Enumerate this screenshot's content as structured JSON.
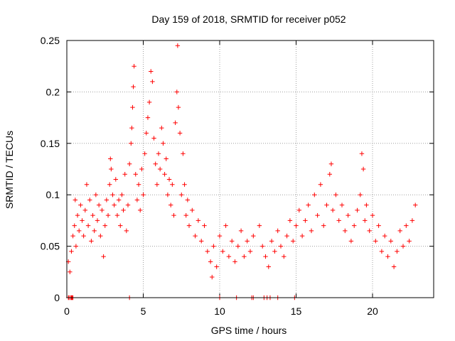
{
  "chart_data": {
    "type": "scatter",
    "title": "Day 159 of 2018, SRMTID for receiver p052",
    "xlabel": "GPS time / hours",
    "ylabel": "SRMTID / TECUs",
    "xlim": [
      0,
      24
    ],
    "ylim": [
      0,
      0.25
    ],
    "xticks": [
      0,
      5,
      10,
      15,
      20
    ],
    "xtick_labels": [
      "0",
      "5",
      "10",
      "15",
      "20"
    ],
    "yticks": [
      0,
      0.05,
      0.1,
      0.15,
      0.2,
      0.25
    ],
    "ytick_labels": [
      "0",
      "0.05",
      "0.1",
      "0.15",
      "0.2",
      "0.25"
    ],
    "grid": true,
    "legend": "none",
    "marker": "+",
    "color": "#ff0000",
    "series": [
      {
        "name": "SRMTID",
        "points": [
          [
            0.1,
            0.0
          ],
          [
            0.15,
            0.0
          ],
          [
            0.25,
            0.0
          ],
          [
            0.3,
            0.0
          ],
          [
            0.35,
            0.0
          ],
          [
            0.4,
            0.0
          ],
          [
            4.1,
            0.0
          ],
          [
            10.0,
            0.0
          ],
          [
            11.1,
            0.0
          ],
          [
            12.1,
            0.0
          ],
          [
            12.2,
            0.0
          ],
          [
            12.9,
            0.0
          ],
          [
            13.1,
            0.0
          ],
          [
            13.3,
            0.0
          ],
          [
            13.8,
            0.0
          ],
          [
            14.9,
            0.0
          ],
          [
            0.1,
            0.035
          ],
          [
            0.2,
            0.025
          ],
          [
            0.3,
            0.045
          ],
          [
            0.4,
            0.06
          ],
          [
            0.5,
            0.07
          ],
          [
            0.55,
            0.095
          ],
          [
            0.6,
            0.05
          ],
          [
            0.7,
            0.08
          ],
          [
            0.8,
            0.065
          ],
          [
            0.9,
            0.09
          ],
          [
            1.0,
            0.075
          ],
          [
            1.1,
            0.06
          ],
          [
            1.2,
            0.085
          ],
          [
            1.3,
            0.11
          ],
          [
            1.4,
            0.07
          ],
          [
            1.5,
            0.095
          ],
          [
            1.6,
            0.055
          ],
          [
            1.7,
            0.08
          ],
          [
            1.8,
            0.065
          ],
          [
            1.9,
            0.1
          ],
          [
            2.0,
            0.075
          ],
          [
            2.1,
            0.09
          ],
          [
            2.2,
            0.06
          ],
          [
            2.3,
            0.085
          ],
          [
            2.4,
            0.04
          ],
          [
            2.5,
            0.07
          ],
          [
            2.6,
            0.095
          ],
          [
            2.7,
            0.08
          ],
          [
            2.8,
            0.11
          ],
          [
            2.85,
            0.135
          ],
          [
            2.9,
            0.125
          ],
          [
            3.0,
            0.1
          ],
          [
            3.1,
            0.09
          ],
          [
            3.2,
            0.115
          ],
          [
            3.3,
            0.08
          ],
          [
            3.4,
            0.095
          ],
          [
            3.5,
            0.07
          ],
          [
            3.6,
            0.1
          ],
          [
            3.7,
            0.085
          ],
          [
            3.8,
            0.12
          ],
          [
            3.9,
            0.065
          ],
          [
            4.0,
            0.09
          ],
          [
            4.1,
            0.13
          ],
          [
            4.2,
            0.15
          ],
          [
            4.25,
            0.165
          ],
          [
            4.3,
            0.185
          ],
          [
            4.35,
            0.205
          ],
          [
            4.4,
            0.225
          ],
          [
            4.5,
            0.12
          ],
          [
            4.6,
            0.095
          ],
          [
            4.7,
            0.11
          ],
          [
            4.8,
            0.085
          ],
          [
            4.9,
            0.125
          ],
          [
            5.0,
            0.1
          ],
          [
            5.1,
            0.14
          ],
          [
            5.2,
            0.16
          ],
          [
            5.3,
            0.175
          ],
          [
            5.4,
            0.19
          ],
          [
            5.5,
            0.22
          ],
          [
            5.6,
            0.21
          ],
          [
            5.7,
            0.155
          ],
          [
            5.8,
            0.13
          ],
          [
            5.9,
            0.11
          ],
          [
            6.0,
            0.14
          ],
          [
            6.1,
            0.125
          ],
          [
            6.2,
            0.165
          ],
          [
            6.3,
            0.15
          ],
          [
            6.4,
            0.12
          ],
          [
            6.5,
            0.135
          ],
          [
            6.6,
            0.1
          ],
          [
            6.7,
            0.115
          ],
          [
            6.8,
            0.09
          ],
          [
            6.9,
            0.11
          ],
          [
            7.0,
            0.08
          ],
          [
            7.1,
            0.17
          ],
          [
            7.2,
            0.2
          ],
          [
            7.25,
            0.245
          ],
          [
            7.3,
            0.185
          ],
          [
            7.4,
            0.16
          ],
          [
            7.5,
            0.1
          ],
          [
            7.6,
            0.14
          ],
          [
            7.7,
            0.11
          ],
          [
            7.8,
            0.08
          ],
          [
            7.9,
            0.095
          ],
          [
            8.0,
            0.07
          ],
          [
            8.2,
            0.085
          ],
          [
            8.4,
            0.06
          ],
          [
            8.6,
            0.075
          ],
          [
            8.8,
            0.055
          ],
          [
            9.0,
            0.07
          ],
          [
            9.2,
            0.045
          ],
          [
            9.4,
            0.035
          ],
          [
            9.5,
            0.02
          ],
          [
            9.6,
            0.05
          ],
          [
            9.8,
            0.03
          ],
          [
            10.0,
            0.06
          ],
          [
            10.2,
            0.045
          ],
          [
            10.4,
            0.07
          ],
          [
            10.6,
            0.04
          ],
          [
            10.8,
            0.055
          ],
          [
            11.0,
            0.035
          ],
          [
            11.2,
            0.05
          ],
          [
            11.4,
            0.065
          ],
          [
            11.6,
            0.04
          ],
          [
            11.8,
            0.055
          ],
          [
            12.0,
            0.045
          ],
          [
            12.2,
            0.06
          ],
          [
            12.6,
            0.07
          ],
          [
            12.8,
            0.05
          ],
          [
            13.0,
            0.04
          ],
          [
            13.2,
            0.03
          ],
          [
            13.4,
            0.055
          ],
          [
            13.6,
            0.045
          ],
          [
            13.8,
            0.065
          ],
          [
            14.0,
            0.05
          ],
          [
            14.2,
            0.04
          ],
          [
            14.4,
            0.06
          ],
          [
            14.6,
            0.075
          ],
          [
            14.8,
            0.055
          ],
          [
            15.0,
            0.07
          ],
          [
            15.2,
            0.085
          ],
          [
            15.4,
            0.06
          ],
          [
            15.6,
            0.075
          ],
          [
            15.8,
            0.09
          ],
          [
            16.0,
            0.065
          ],
          [
            16.2,
            0.1
          ],
          [
            16.4,
            0.08
          ],
          [
            16.6,
            0.11
          ],
          [
            16.8,
            0.07
          ],
          [
            17.0,
            0.09
          ],
          [
            17.2,
            0.12
          ],
          [
            17.3,
            0.13
          ],
          [
            17.4,
            0.085
          ],
          [
            17.6,
            0.1
          ],
          [
            17.8,
            0.075
          ],
          [
            18.0,
            0.09
          ],
          [
            18.2,
            0.065
          ],
          [
            18.4,
            0.08
          ],
          [
            18.6,
            0.055
          ],
          [
            18.8,
            0.07
          ],
          [
            19.0,
            0.085
          ],
          [
            19.2,
            0.1
          ],
          [
            19.3,
            0.14
          ],
          [
            19.4,
            0.125
          ],
          [
            19.5,
            0.075
          ],
          [
            19.6,
            0.09
          ],
          [
            19.8,
            0.065
          ],
          [
            20.0,
            0.08
          ],
          [
            20.2,
            0.055
          ],
          [
            20.4,
            0.07
          ],
          [
            20.6,
            0.045
          ],
          [
            20.8,
            0.06
          ],
          [
            21.0,
            0.04
          ],
          [
            21.2,
            0.055
          ],
          [
            21.4,
            0.03
          ],
          [
            21.6,
            0.045
          ],
          [
            21.8,
            0.065
          ],
          [
            22.0,
            0.05
          ],
          [
            22.2,
            0.07
          ],
          [
            22.4,
            0.055
          ],
          [
            22.6,
            0.075
          ],
          [
            22.8,
            0.09
          ]
        ]
      }
    ]
  }
}
